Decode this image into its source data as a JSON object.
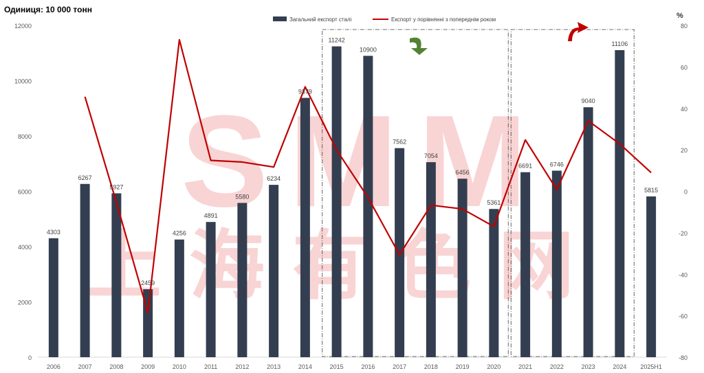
{
  "unit_label": "Одиниця: 10 000 тонн",
  "right_axis_unit": "%",
  "watermark": "SMM 上海有色网",
  "colors": {
    "bar": "#333f50",
    "line": "#c00000",
    "arrow_down": "#548235",
    "arrow_up": "#c00000",
    "watermark": "#f9d4d4"
  },
  "chart_data": {
    "type": "bar+line",
    "categories": [
      "2006",
      "2007",
      "2008",
      "2009",
      "2010",
      "2011",
      "2012",
      "2013",
      "2014",
      "2015",
      "2016",
      "2017",
      "2018",
      "2019",
      "2020",
      "2021",
      "2022",
      "2023",
      "2024",
      "2025H1"
    ],
    "series": [
      {
        "name": "Загальний експорт сталі",
        "type": "bar",
        "axis": "left",
        "values": [
          4303,
          6267,
          5927,
          2459,
          4256,
          4891,
          5580,
          6234,
          9379,
          11242,
          10900,
          7562,
          7054,
          6456,
          5361,
          6691,
          6746,
          9040,
          11106,
          5815
        ]
      },
      {
        "name": "Експорт у порівнянні з попереднім роком",
        "type": "line",
        "axis": "right",
        "values": [
          null,
          45.6,
          -5.4,
          -58.5,
          73.1,
          14.9,
          14.1,
          11.7,
          50.4,
          19.9,
          -3.0,
          -30.6,
          -6.7,
          -8.5,
          -17.0,
          24.8,
          0.8,
          34.0,
          22.9,
          9.0
        ]
      }
    ],
    "y_left": {
      "min": 0,
      "max": 12000,
      "ticks": [
        0,
        2000,
        4000,
        6000,
        8000,
        10000,
        12000
      ]
    },
    "y_right": {
      "min": -80,
      "max": 80,
      "ticks": [
        -80,
        -60,
        -40,
        -20,
        0,
        20,
        40,
        60,
        80
      ]
    },
    "highlight_ranges": [
      {
        "from": "2015",
        "to": "2020",
        "trend": "down"
      },
      {
        "from": "2021",
        "to": "2024",
        "trend": "up"
      }
    ],
    "legend_position": "top-center"
  }
}
